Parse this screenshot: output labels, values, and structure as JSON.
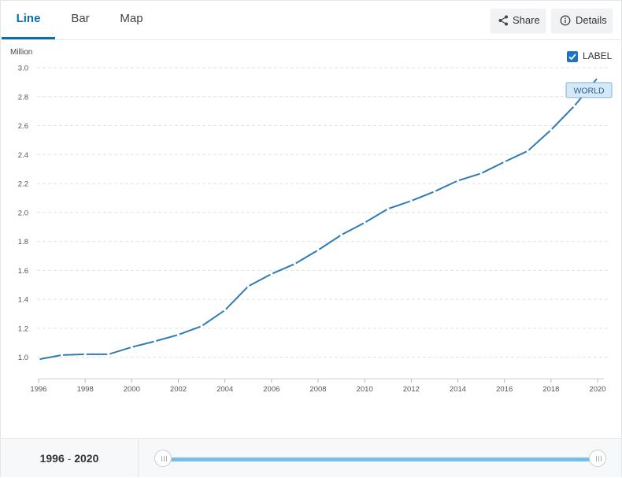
{
  "tabs": [
    {
      "label": "Line",
      "active": true
    },
    {
      "label": "Bar",
      "active": false
    },
    {
      "label": "Map",
      "active": false
    }
  ],
  "actions": {
    "share_label": "Share",
    "details_label": "Details"
  },
  "legend": {
    "checkbox_label": "LABEL",
    "checked": true
  },
  "range": {
    "start": "1996",
    "separator": "-",
    "end": "2020"
  },
  "colors": {
    "accent": "#0b6ead",
    "line": "#2f7bb3",
    "slider": "#73bfe8",
    "badge_bg": "#d6e9f7",
    "badge_border": "#7fb3d8"
  },
  "chart_data": {
    "type": "line",
    "unit_label": "Million",
    "x": [
      1996,
      1997,
      1998,
      1999,
      2000,
      2001,
      2002,
      2003,
      2004,
      2005,
      2006,
      2007,
      2008,
      2009,
      2010,
      2011,
      2012,
      2013,
      2014,
      2015,
      2016,
      2017,
      2018,
      2019,
      2020
    ],
    "series": [
      {
        "name": "WORLD",
        "values": [
          0.985,
          1.015,
          1.02,
          1.02,
          1.07,
          1.11,
          1.155,
          1.215,
          1.325,
          1.49,
          1.575,
          1.645,
          1.74,
          1.845,
          1.93,
          2.025,
          2.08,
          2.145,
          2.22,
          2.27,
          2.35,
          2.425,
          2.57,
          2.735,
          2.93
        ]
      }
    ],
    "x_ticks": [
      "1996",
      "1998",
      "2000",
      "2002",
      "2004",
      "2006",
      "2008",
      "2010",
      "2012",
      "2014",
      "2016",
      "2018",
      "2020"
    ],
    "y_ticks": [
      "1.0",
      "1.2",
      "1.4",
      "1.6",
      "1.8",
      "2.0",
      "2.2",
      "2.4",
      "2.6",
      "2.8",
      "3.0"
    ],
    "ylim": [
      0.9,
      3.0
    ],
    "xlim": [
      1996,
      2020
    ],
    "grid": "horizontal dashed",
    "end_label": "WORLD"
  }
}
